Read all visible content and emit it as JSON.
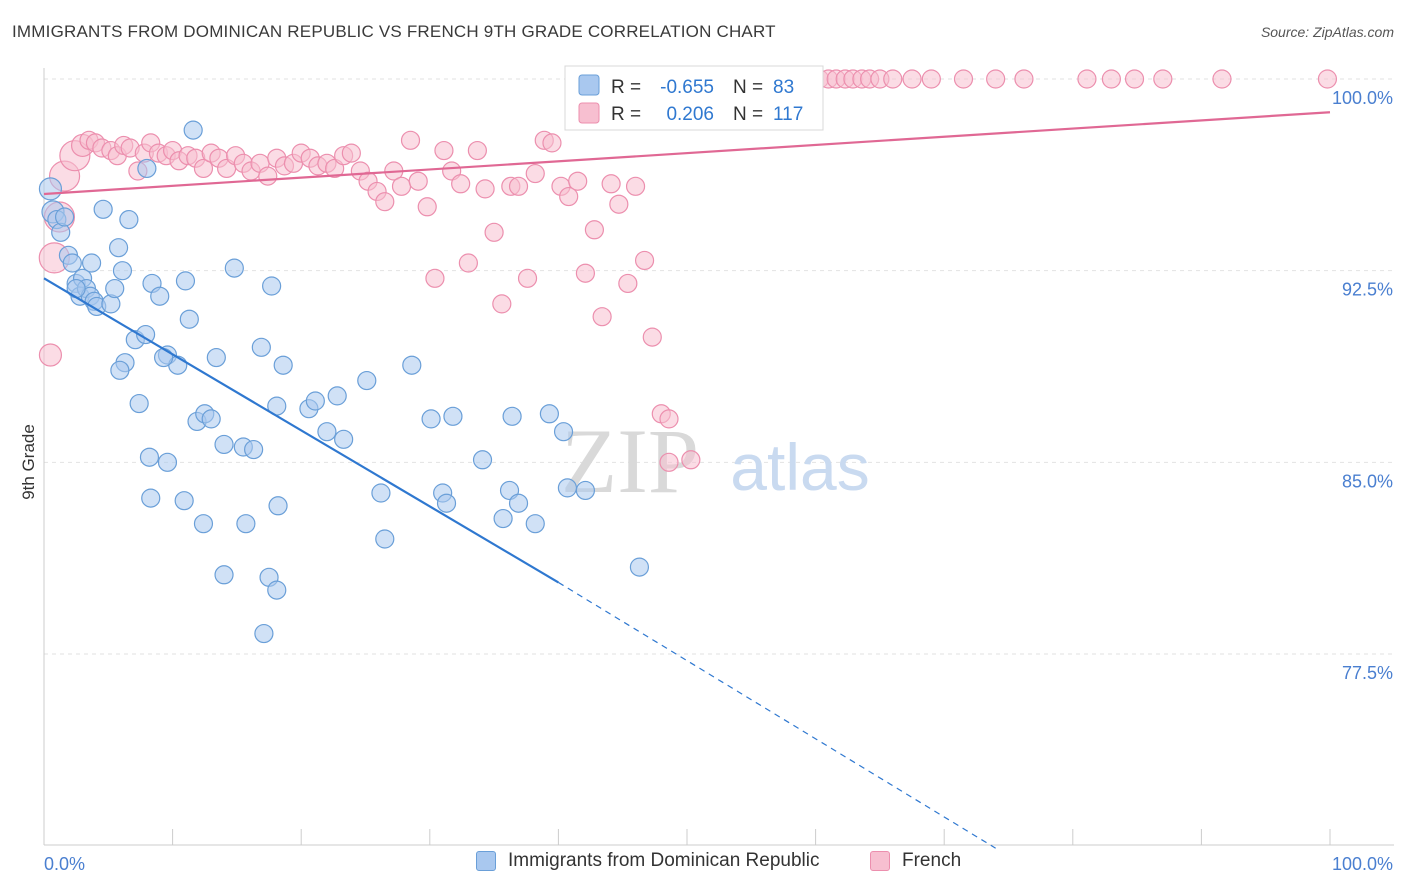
{
  "title": "IMMIGRANTS FROM DOMINICAN REPUBLIC VS FRENCH 9TH GRADE CORRELATION CHART",
  "source": "Source: ZipAtlas.com",
  "watermark": {
    "zip": "ZIP",
    "atlas": "atlas"
  },
  "colors": {
    "blue_fill": "#a9c8ef",
    "blue_stroke": "#6a9fd8",
    "blue_line": "#2f78d0",
    "pink_fill": "#f7bfd0",
    "pink_stroke": "#ec8fae",
    "pink_line": "#e06894",
    "tick_label": "#4a7fd0",
    "grid": "#e2e2e2"
  },
  "stats": [
    {
      "r_label": "R =",
      "r_value": "-0.655",
      "n_label": "N =",
      "n_value": "83"
    },
    {
      "r_label": "R =",
      "r_value": "0.206",
      "n_label": "N =",
      "n_value": "117"
    }
  ],
  "chart_data": {
    "type": "scatter",
    "title": "IMMIGRANTS FROM DOMINICAN REPUBLIC VS FRENCH 9TH GRADE CORRELATION CHART",
    "xlabel": "",
    "ylabel": "9th Grade",
    "xlim": [
      0,
      100
    ],
    "ylim": [
      70,
      101.5
    ],
    "x_tick_labels": [
      "0.0%",
      "100.0%"
    ],
    "y_ticks": [
      100.0,
      92.5,
      85.0,
      77.5
    ],
    "y_tick_labels": [
      "100.0%",
      "92.5%",
      "85.0%",
      "77.5%"
    ],
    "grid": true,
    "legend_position": "bottom-center",
    "series": [
      {
        "name": "Immigrants from Dominican Republic",
        "color": "blue",
        "trend": {
          "x0": 0,
          "y0": 92.2,
          "x1": 40,
          "y1": 80.3,
          "dash_to_x": 74,
          "dash_to_y": 69.9
        },
        "points": [
          [
            0.5,
            95.7,
            2
          ],
          [
            0.7,
            94.8,
            2
          ],
          [
            1.0,
            94.5,
            1
          ],
          [
            1.3,
            94.0,
            1
          ],
          [
            1.6,
            94.6,
            1
          ],
          [
            1.9,
            93.1,
            1
          ],
          [
            2.2,
            92.8,
            1
          ],
          [
            2.5,
            92.0,
            1
          ],
          [
            2.8,
            91.5,
            1
          ],
          [
            3.0,
            92.2,
            1
          ],
          [
            3.3,
            91.8,
            1
          ],
          [
            3.6,
            91.5,
            1
          ],
          [
            3.9,
            91.3,
            1
          ],
          [
            4.1,
            91.1,
            1
          ],
          [
            3.7,
            92.8,
            1
          ],
          [
            4.6,
            94.9,
            1
          ],
          [
            5.2,
            91.2,
            1
          ],
          [
            5.5,
            91.8,
            1
          ],
          [
            5.8,
            93.4,
            1
          ],
          [
            6.1,
            92.5,
            1
          ],
          [
            6.6,
            94.5,
            1
          ],
          [
            7.1,
            89.8,
            1
          ],
          [
            6.3,
            88.9,
            1
          ],
          [
            8.4,
            92.0,
            1
          ],
          [
            9.0,
            91.5,
            1
          ],
          [
            9.6,
            89.2,
            1
          ],
          [
            10.4,
            88.8,
            1
          ],
          [
            11.0,
            92.1,
            1
          ],
          [
            11.3,
            90.6,
            1
          ],
          [
            11.9,
            86.6,
            1
          ],
          [
            12.5,
            86.9,
            1
          ],
          [
            13.0,
            86.7,
            1
          ],
          [
            13.4,
            89.1,
            1
          ],
          [
            14.0,
            85.7,
            1
          ],
          [
            14.8,
            92.6,
            1
          ],
          [
            15.5,
            85.6,
            1
          ],
          [
            16.3,
            85.5,
            1
          ],
          [
            16.9,
            89.5,
            1
          ],
          [
            17.7,
            91.9,
            1
          ],
          [
            18.1,
            87.2,
            1
          ],
          [
            18.6,
            88.8,
            1
          ],
          [
            18.2,
            83.3,
            1
          ],
          [
            20.6,
            87.1,
            1
          ],
          [
            21.1,
            87.4,
            1
          ],
          [
            22.0,
            86.2,
            1
          ],
          [
            22.8,
            87.6,
            1
          ],
          [
            23.3,
            85.9,
            1
          ],
          [
            25.1,
            88.2,
            1
          ],
          [
            26.2,
            83.8,
            1
          ],
          [
            26.5,
            82.0,
            1
          ],
          [
            28.6,
            88.8,
            1
          ],
          [
            30.1,
            86.7,
            1
          ],
          [
            31.0,
            83.8,
            1
          ],
          [
            31.3,
            83.4,
            1
          ],
          [
            31.8,
            86.8,
            1
          ],
          [
            34.1,
            85.1,
            1
          ],
          [
            35.7,
            82.8,
            1
          ],
          [
            36.2,
            83.9,
            1
          ],
          [
            36.4,
            86.8,
            1
          ],
          [
            36.9,
            83.4,
            1
          ],
          [
            38.2,
            82.6,
            1
          ],
          [
            39.3,
            86.9,
            1
          ],
          [
            40.4,
            86.2,
            1
          ],
          [
            40.7,
            84.0,
            1
          ],
          [
            42.1,
            83.9,
            1
          ],
          [
            46.3,
            80.9,
            1
          ],
          [
            8.0,
            96.5,
            1
          ],
          [
            11.6,
            98.0,
            1
          ],
          [
            8.2,
            85.2,
            1
          ],
          [
            9.6,
            85.0,
            1
          ],
          [
            10.9,
            83.5,
            1
          ],
          [
            12.4,
            82.6,
            1
          ],
          [
            14.0,
            80.6,
            1
          ],
          [
            15.7,
            82.6,
            1
          ],
          [
            17.5,
            80.5,
            1
          ],
          [
            18.1,
            80.0,
            1
          ],
          [
            17.1,
            78.3,
            1
          ],
          [
            7.4,
            87.3,
            1
          ],
          [
            8.3,
            83.6,
            1
          ],
          [
            5.9,
            88.6,
            1
          ],
          [
            9.3,
            89.1,
            1
          ],
          [
            2.5,
            91.8,
            1
          ],
          [
            7.9,
            90.0,
            1
          ]
        ]
      },
      {
        "name": "French",
        "color": "pink",
        "trend": {
          "x0": 0,
          "y0": 95.5,
          "x1": 100,
          "y1": 98.7
        },
        "points": [
          [
            0.5,
            89.2,
            2
          ],
          [
            0.8,
            93.0,
            3
          ],
          [
            1.2,
            94.6,
            3
          ],
          [
            1.6,
            96.2,
            3
          ],
          [
            2.4,
            97.0,
            3
          ],
          [
            3.0,
            97.4,
            2
          ],
          [
            3.5,
            97.6,
            1
          ],
          [
            4.0,
            97.5,
            1
          ],
          [
            4.5,
            97.3,
            1
          ],
          [
            5.2,
            97.2,
            1
          ],
          [
            5.7,
            97.0,
            1
          ],
          [
            6.2,
            97.4,
            1
          ],
          [
            6.7,
            97.3,
            1
          ],
          [
            7.3,
            96.4,
            1
          ],
          [
            7.8,
            97.1,
            1
          ],
          [
            8.3,
            97.5,
            1
          ],
          [
            8.9,
            97.1,
            1
          ],
          [
            9.5,
            97.0,
            1
          ],
          [
            10.0,
            97.2,
            1
          ],
          [
            10.5,
            96.8,
            1
          ],
          [
            11.2,
            97.0,
            1
          ],
          [
            11.8,
            96.9,
            1
          ],
          [
            12.4,
            96.5,
            1
          ],
          [
            13.0,
            97.1,
            1
          ],
          [
            13.6,
            96.9,
            1
          ],
          [
            14.2,
            96.5,
            1
          ],
          [
            14.9,
            97.0,
            1
          ],
          [
            15.5,
            96.7,
            1
          ],
          [
            16.1,
            96.4,
            1
          ],
          [
            16.8,
            96.7,
            1
          ],
          [
            17.4,
            96.2,
            1
          ],
          [
            18.1,
            96.9,
            1
          ],
          [
            18.7,
            96.6,
            1
          ],
          [
            19.4,
            96.7,
            1
          ],
          [
            20.0,
            97.1,
            1
          ],
          [
            20.7,
            96.9,
            1
          ],
          [
            21.3,
            96.6,
            1
          ],
          [
            22.0,
            96.7,
            1
          ],
          [
            22.6,
            96.5,
            1
          ],
          [
            23.3,
            97.0,
            1
          ],
          [
            23.9,
            97.1,
            1
          ],
          [
            24.6,
            96.4,
            1
          ],
          [
            25.2,
            96.0,
            1
          ],
          [
            25.9,
            95.6,
            1
          ],
          [
            26.5,
            95.2,
            1
          ],
          [
            27.2,
            96.4,
            1
          ],
          [
            27.8,
            95.8,
            1
          ],
          [
            28.5,
            97.6,
            1
          ],
          [
            29.1,
            96.0,
            1
          ],
          [
            29.8,
            95.0,
            1
          ],
          [
            30.4,
            92.2,
            1
          ],
          [
            31.1,
            97.2,
            1
          ],
          [
            31.7,
            96.4,
            1
          ],
          [
            32.4,
            95.9,
            1
          ],
          [
            33.0,
            92.8,
            1
          ],
          [
            33.7,
            97.2,
            1
          ],
          [
            34.3,
            95.7,
            1
          ],
          [
            35.0,
            94.0,
            1
          ],
          [
            35.6,
            91.2,
            1
          ],
          [
            36.3,
            95.8,
            1
          ],
          [
            36.9,
            95.8,
            1
          ],
          [
            37.6,
            92.2,
            1
          ],
          [
            38.2,
            96.3,
            1
          ],
          [
            38.9,
            97.6,
            1
          ],
          [
            39.5,
            97.5,
            1
          ],
          [
            40.2,
            95.8,
            1
          ],
          [
            40.8,
            95.4,
            1
          ],
          [
            41.5,
            96.0,
            1
          ],
          [
            42.1,
            92.4,
            1
          ],
          [
            42.8,
            94.1,
            1
          ],
          [
            43.4,
            90.7,
            1
          ],
          [
            44.1,
            95.9,
            1
          ],
          [
            44.7,
            95.1,
            1
          ],
          [
            45.4,
            92.0,
            1
          ],
          [
            46.0,
            95.8,
            1
          ],
          [
            46.7,
            92.9,
            1
          ],
          [
            47.3,
            89.9,
            1
          ],
          [
            48.0,
            86.9,
            1
          ],
          [
            48.6,
            86.7,
            1
          ],
          [
            49.3,
            100.0,
            1
          ],
          [
            49.9,
            100.0,
            1
          ],
          [
            50.6,
            100.0,
            1
          ],
          [
            51.2,
            100.0,
            1
          ],
          [
            51.9,
            100.0,
            1
          ],
          [
            52.5,
            100.0,
            1
          ],
          [
            53.2,
            100.0,
            1
          ],
          [
            53.8,
            100.0,
            1
          ],
          [
            54.5,
            100.0,
            1
          ],
          [
            55.1,
            100.0,
            1
          ],
          [
            55.8,
            100.0,
            1
          ],
          [
            56.4,
            100.0,
            1
          ],
          [
            57.1,
            100.0,
            1
          ],
          [
            57.7,
            100.0,
            1
          ],
          [
            58.4,
            100.0,
            1
          ],
          [
            59.0,
            100.0,
            1
          ],
          [
            59.7,
            100.0,
            1
          ],
          [
            60.3,
            100.0,
            1
          ],
          [
            61.0,
            100.0,
            1
          ],
          [
            61.6,
            100.0,
            1
          ],
          [
            62.3,
            100.0,
            1
          ],
          [
            62.9,
            100.0,
            1
          ],
          [
            63.6,
            100.0,
            1
          ],
          [
            64.2,
            100.0,
            1
          ],
          [
            65.0,
            100.0,
            1
          ],
          [
            66.0,
            100.0,
            1
          ],
          [
            67.5,
            100.0,
            1
          ],
          [
            69.0,
            100.0,
            1
          ],
          [
            71.5,
            100.0,
            1
          ],
          [
            74.0,
            100.0,
            1
          ],
          [
            76.2,
            100.0,
            1
          ],
          [
            81.1,
            100.0,
            1
          ],
          [
            83.0,
            100.0,
            1
          ],
          [
            84.8,
            100.0,
            1
          ],
          [
            87.0,
            100.0,
            1
          ],
          [
            91.6,
            100.0,
            1
          ],
          [
            99.8,
            100.0,
            1
          ],
          [
            48.6,
            85.0,
            1
          ],
          [
            50.3,
            85.1,
            1
          ]
        ]
      }
    ]
  },
  "legend": [
    {
      "label": "Immigrants from Dominican Republic",
      "color": "blue"
    },
    {
      "label": "French",
      "color": "pink"
    }
  ]
}
